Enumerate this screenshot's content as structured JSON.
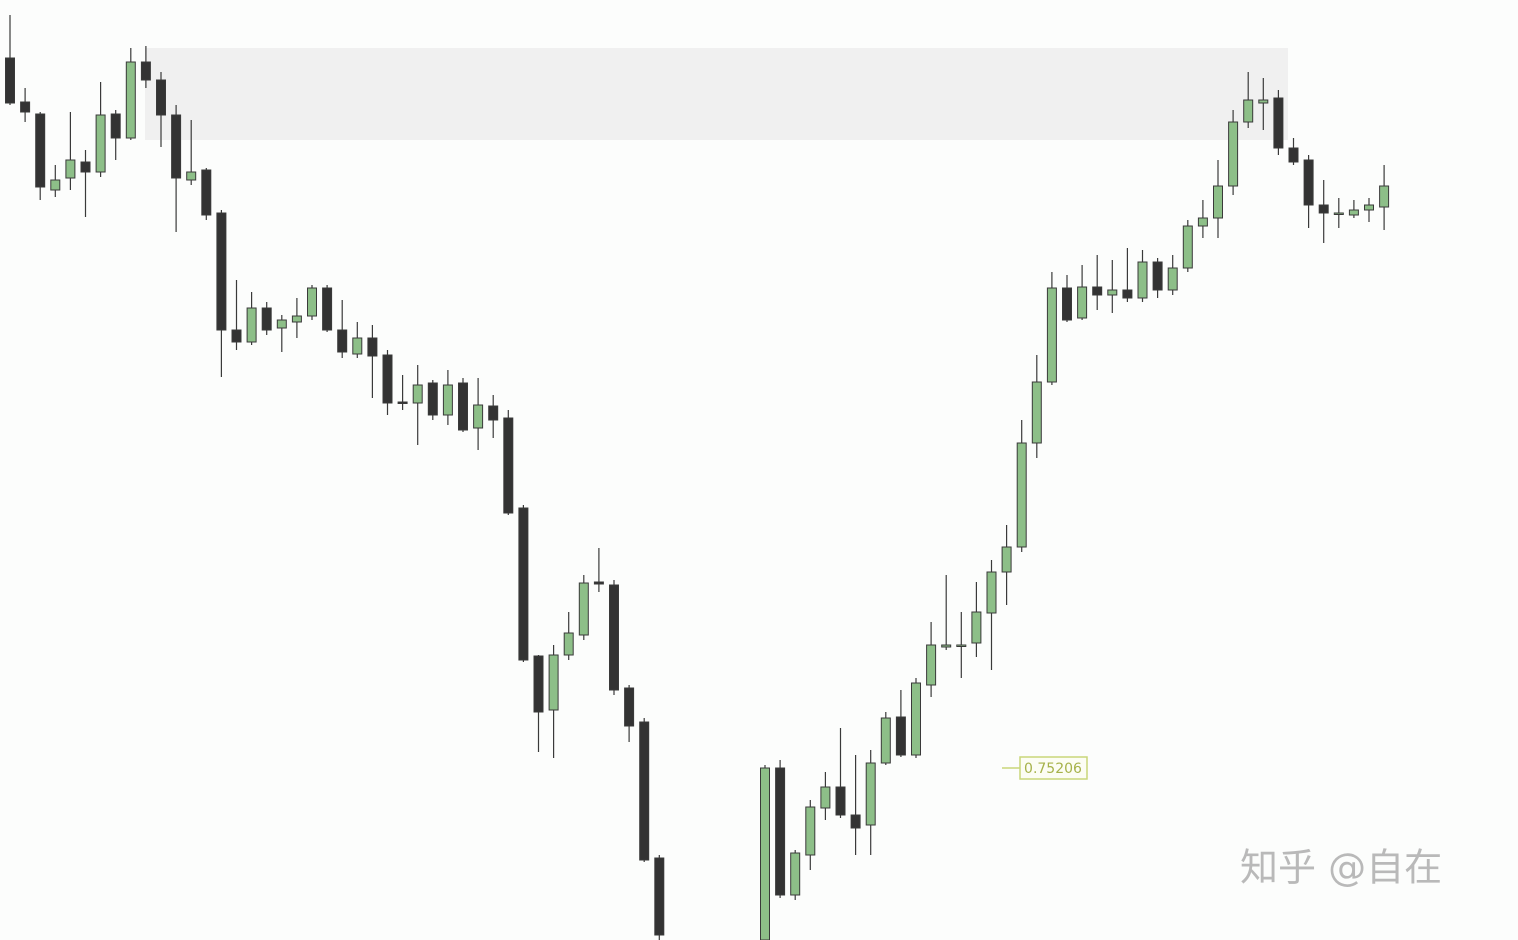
{
  "chart_data": {
    "type": "candlestick",
    "ylim": [
      0.75034,
      0.75974
    ],
    "up_color": "#8dbf88",
    "down_color": "#333333",
    "outline_color": "#3a3a3a",
    "zone": [
      0.75834,
      0.75926
    ],
    "zone_color": "#f0f0f0",
    "price_marker": 0.75206,
    "marker_color": "#c9d77a",
    "watermark": "知乎 @自在",
    "open": [
      0.75916,
      0.75872,
      0.7586,
      0.75784,
      0.75796,
      0.75812,
      0.75802,
      0.7586,
      0.75836,
      0.75912,
      0.75894,
      0.75859,
      0.75794,
      0.75804,
      0.75761,
      0.75644,
      0.75632,
      0.75666,
      0.75646,
      0.75652,
      0.75658,
      0.75686,
      0.75644,
      0.7562,
      0.75636,
      0.75619,
      0.75572,
      0.75571,
      0.75591,
      0.75559,
      0.75591,
      0.75546,
      0.75568,
      0.75556,
      0.75466,
      0.75318,
      0.75264,
      0.75319,
      0.75339,
      0.75392,
      0.75389,
      0.75286,
      0.75252,
      0.75116,
      null,
      null,
      null,
      null,
      null,
      null,
      0.75034,
      0.75206,
      0.75079,
      0.75119,
      0.75166,
      0.75187,
      0.75159,
      0.75149,
      0.75211,
      0.75257,
      0.75219,
      0.75289,
      0.75327,
      0.75329,
      0.75331,
      0.75361,
      0.75402,
      0.75427,
      0.75531,
      0.75592,
      0.75686,
      0.75656,
      0.75687,
      0.75679,
      0.75684,
      0.75676,
      0.75712,
      0.75684,
      0.75706,
      0.75748,
      0.75756,
      0.75788,
      0.75852,
      0.75871,
      0.75876,
      0.75826,
      0.75814,
      0.75769,
      0.75761,
      0.75759,
      0.75764,
      0.75767
    ],
    "high": [
      0.75959,
      0.75886,
      0.75862,
      0.75809,
      0.75862,
      0.75824,
      0.75892,
      0.75864,
      0.75926,
      0.75928,
      0.75902,
      0.75869,
      0.75854,
      0.75806,
      0.75764,
      0.75694,
      0.75682,
      0.75672,
      0.75659,
      0.75676,
      0.75689,
      0.75689,
      0.75674,
      0.75652,
      0.75649,
      0.75624,
      0.75599,
      0.75609,
      0.75594,
      0.75604,
      0.75596,
      0.75596,
      0.75579,
      0.75564,
      0.75469,
      0.75319,
      0.75329,
      0.75362,
      0.75399,
      0.75426,
      0.75394,
      0.75289,
      0.75256,
      0.75119,
      null,
      null,
      null,
      null,
      null,
      null,
      0.75209,
      0.75214,
      0.75124,
      0.75174,
      0.75202,
      0.75246,
      0.75219,
      0.75224,
      0.75262,
      0.75284,
      0.75296,
      0.75352,
      0.75399,
      0.75362,
      0.75392,
      0.75414,
      0.75449,
      0.75554,
      0.75619,
      0.75702,
      0.75699,
      0.75709,
      0.75719,
      0.75714,
      0.75726,
      0.75724,
      0.75716,
      0.75719,
      0.75754,
      0.75774,
      0.75814,
      0.75864,
      0.75902,
      0.75896,
      0.75884,
      0.75836,
      0.75819,
      0.75794,
      0.75776,
      0.75774,
      0.75776,
      0.75809
    ],
    "low": [
      0.75869,
      0.75852,
      0.75774,
      0.75777,
      0.75784,
      0.75757,
      0.75797,
      0.75814,
      0.75834,
      0.75886,
      0.75827,
      0.75742,
      0.75789,
      0.75754,
      0.75597,
      0.75624,
      0.75629,
      0.75639,
      0.75622,
      0.75636,
      0.75654,
      0.75642,
      0.75616,
      0.75616,
      0.75576,
      0.75559,
      0.75564,
      0.75529,
      0.75554,
      0.75549,
      0.75542,
      0.75524,
      0.75536,
      0.75459,
      0.75312,
      0.75222,
      0.75216,
      0.75314,
      0.75334,
      0.75382,
      0.75279,
      0.75232,
      0.75112,
      0.75034,
      null,
      null,
      null,
      null,
      null,
      null,
      0.75034,
      0.75076,
      0.75074,
      0.75104,
      0.75154,
      0.75156,
      0.75119,
      0.75119,
      0.75209,
      0.75217,
      0.75216,
      0.75277,
      0.75324,
      0.75296,
      0.75317,
      0.75304,
      0.75369,
      0.75422,
      0.75516,
      0.75589,
      0.75652,
      0.75654,
      0.75664,
      0.75661,
      0.75672,
      0.75672,
      0.75676,
      0.75679,
      0.75702,
      0.75736,
      0.75736,
      0.75779,
      0.75846,
      0.75844,
      0.75819,
      0.75809,
      0.75746,
      0.75731,
      0.75746,
      0.75756,
      0.75752,
      0.75744
    ],
    "close": [
      0.75871,
      0.75862,
      0.75787,
      0.75794,
      0.75814,
      0.75802,
      0.75859,
      0.75836,
      0.75912,
      0.75894,
      0.75859,
      0.75796,
      0.75802,
      0.75759,
      0.75644,
      0.75632,
      0.75666,
      0.75644,
      0.75654,
      0.75658,
      0.75686,
      0.75644,
      0.75622,
      0.75636,
      0.75618,
      0.75571,
      0.75571,
      0.75589,
      0.75559,
      0.75589,
      0.75544,
      0.75569,
      0.75554,
      0.75461,
      0.75314,
      0.75262,
      0.75319,
      0.75341,
      0.75391,
      0.7539,
      0.75284,
      0.75248,
      0.75114,
      0.75039,
      null,
      null,
      null,
      null,
      null,
      null,
      0.75206,
      0.75079,
      0.75121,
      0.75167,
      0.75187,
      0.75159,
      0.75146,
      0.75211,
      0.75256,
      0.75219,
      0.75291,
      0.75329,
      0.75329,
      0.75329,
      0.75362,
      0.75402,
      0.75427,
      0.75531,
      0.75592,
      0.75686,
      0.75654,
      0.75687,
      0.75679,
      0.75684,
      0.75676,
      0.75712,
      0.75684,
      0.75706,
      0.75748,
      0.75756,
      0.75788,
      0.75852,
      0.75874,
      0.75874,
      0.75826,
      0.75812,
      0.75769,
      0.75761,
      0.75761,
      0.75764,
      0.75769,
      0.75788
    ]
  }
}
